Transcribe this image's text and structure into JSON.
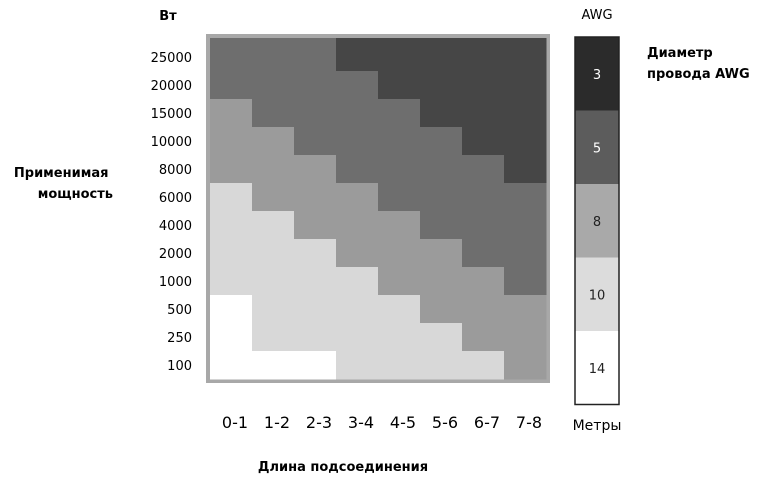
{
  "chart_data": {
    "type": "heatmap",
    "unit_label": "Вт",
    "ylabel": "Применимая мощность",
    "xlabel": "Длина подсоединения",
    "x_categories": [
      "0-1",
      "1-2",
      "2-3",
      "3-4",
      "4-5",
      "5-6",
      "6-7",
      "7-8"
    ],
    "y_categories": [
      "25000",
      "20000",
      "15000",
      "10000",
      "8000",
      "6000",
      "4000",
      "2000",
      "1000",
      "500",
      "250",
      "100"
    ],
    "grid": [
      [
        5,
        5,
        5,
        3,
        3,
        3,
        3,
        3
      ],
      [
        5,
        5,
        5,
        5,
        3,
        3,
        3,
        3
      ],
      [
        8,
        5,
        5,
        5,
        5,
        3,
        3,
        3
      ],
      [
        8,
        8,
        5,
        5,
        5,
        5,
        3,
        3
      ],
      [
        8,
        8,
        8,
        5,
        5,
        5,
        5,
        3
      ],
      [
        10,
        8,
        8,
        8,
        5,
        5,
        5,
        5
      ],
      [
        10,
        10,
        8,
        8,
        8,
        5,
        5,
        5
      ],
      [
        10,
        10,
        10,
        8,
        8,
        8,
        5,
        5
      ],
      [
        10,
        10,
        10,
        10,
        8,
        8,
        8,
        5
      ],
      [
        14,
        10,
        10,
        10,
        10,
        8,
        8,
        8
      ],
      [
        14,
        10,
        10,
        10,
        10,
        10,
        8,
        8
      ],
      [
        14,
        14,
        14,
        10,
        10,
        10,
        10,
        8
      ]
    ],
    "legend": {
      "title": "AWG",
      "side_label": "Диаметр провода AWG",
      "footer": "Метры",
      "items": [
        {
          "label": "3",
          "color": "#2b2b2b",
          "text_color": "#ffffff"
        },
        {
          "label": "5",
          "color": "#5c5c5c",
          "text_color": "#ffffff"
        },
        {
          "label": "8",
          "color": "#a9a9a9",
          "text_color": "#222222"
        },
        {
          "label": "10",
          "color": "#dcdcdc",
          "text_color": "#222222"
        },
        {
          "label": "14",
          "color": "#ffffff",
          "text_color": "#222222"
        }
      ]
    },
    "colors": {
      "3": "#464646",
      "5": "#6e6e6e",
      "8": "#9b9b9b",
      "10": "#d8d8d8",
      "14": "#ffffff",
      "background": "#a8a8a8"
    }
  }
}
